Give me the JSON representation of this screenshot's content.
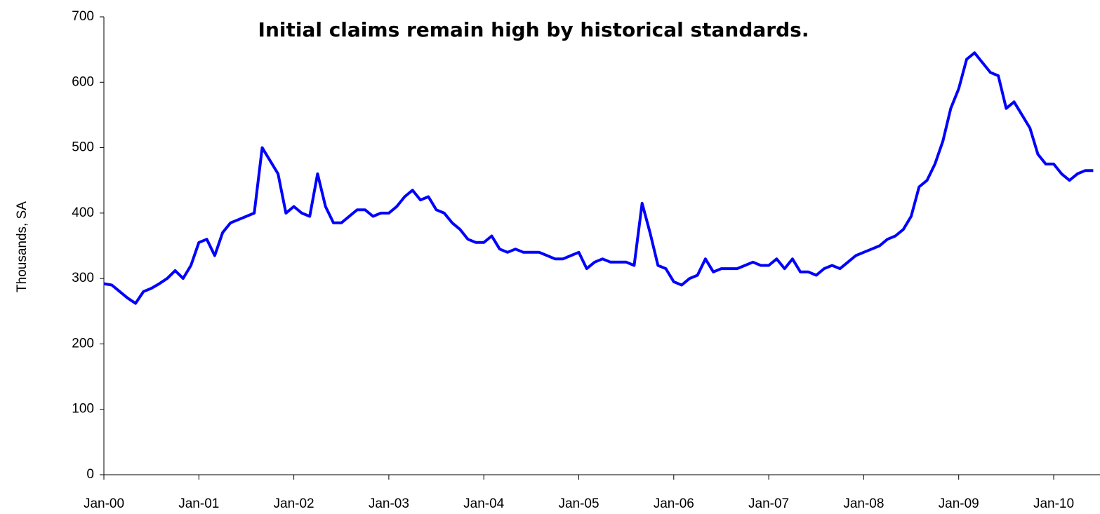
{
  "chart_data": {
    "type": "line",
    "title": "Initial claims remain high by historical standards.",
    "y_label": "Thousands, SA",
    "categories": [
      "Jan-00",
      null,
      null,
      null,
      null,
      null,
      null,
      null,
      null,
      null,
      null,
      null,
      "Jan-01",
      null,
      null,
      null,
      null,
      null,
      null,
      null,
      null,
      null,
      null,
      null,
      "Jan-02",
      null,
      null,
      null,
      null,
      null,
      null,
      null,
      null,
      null,
      null,
      null,
      "Jan-03",
      null,
      null,
      null,
      null,
      null,
      null,
      null,
      null,
      null,
      null,
      null,
      "Jan-04",
      null,
      null,
      null,
      null,
      null,
      null,
      null,
      null,
      null,
      null,
      null,
      "Jan-05",
      null,
      null,
      null,
      null,
      null,
      null,
      null,
      null,
      null,
      null,
      null,
      "Jan-06",
      null,
      null,
      null,
      null,
      null,
      null,
      null,
      null,
      null,
      null,
      null,
      "Jan-07",
      null,
      null,
      null,
      null,
      null,
      null,
      null,
      null,
      null,
      null,
      null,
      "Jan-08",
      null,
      null,
      null,
      null,
      null,
      null,
      null,
      null,
      null,
      null,
      null,
      "Jan-09",
      null,
      null,
      null,
      null,
      null,
      null,
      null,
      null,
      null,
      null,
      null,
      "Jan-10",
      null,
      null,
      null,
      null,
      null
    ],
    "values": [
      292,
      290,
      280,
      270,
      262,
      280,
      285,
      292,
      300,
      312,
      300,
      320,
      355,
      360,
      335,
      370,
      385,
      390,
      395,
      400,
      500,
      480,
      460,
      400,
      410,
      400,
      395,
      460,
      410,
      385,
      385,
      395,
      405,
      405,
      395,
      400,
      400,
      410,
      425,
      435,
      420,
      425,
      405,
      400,
      385,
      375,
      360,
      355,
      355,
      365,
      345,
      340,
      345,
      340,
      340,
      340,
      335,
      330,
      330,
      335,
      340,
      315,
      325,
      330,
      325,
      325,
      325,
      320,
      415,
      370,
      320,
      315,
      295,
      290,
      300,
      305,
      330,
      310,
      315,
      315,
      315,
      320,
      325,
      320,
      320,
      330,
      315,
      330,
      310,
      310,
      305,
      315,
      320,
      315,
      325,
      335,
      340,
      345,
      350,
      360,
      365,
      375,
      395,
      440,
      450,
      475,
      510,
      560,
      590,
      635,
      645,
      630,
      615,
      610,
      560,
      570,
      550,
      530,
      490,
      475,
      475,
      460,
      450,
      460,
      465,
      465
    ],
    "color": "#0000ff",
    "ylim": [
      0,
      700
    ],
    "yticks": [
      0,
      100,
      200,
      300,
      400,
      500,
      600,
      700
    ],
    "grid": false
  }
}
